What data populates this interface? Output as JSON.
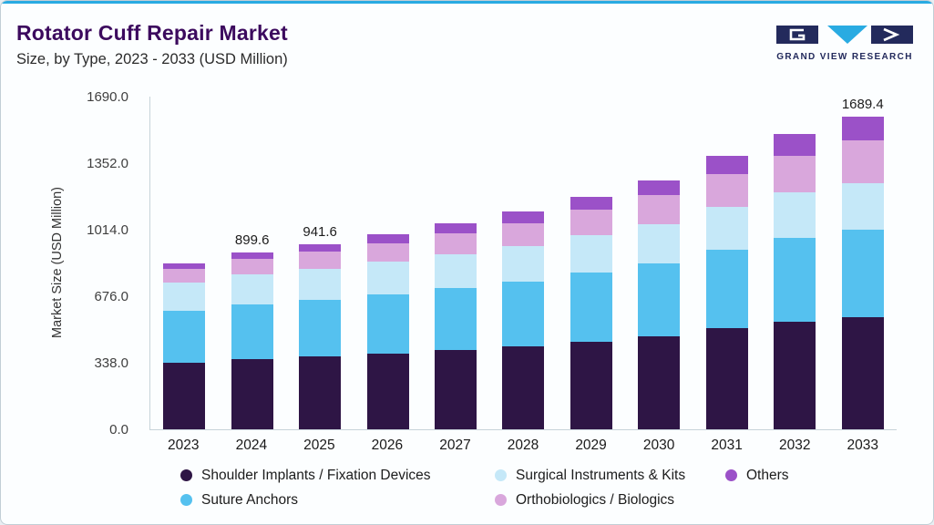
{
  "header": {
    "title": "Rotator Cuff Repair Market",
    "subtitle": "Size, by Type, 2023 - 2033 (USD Million)",
    "brand": "GRAND VIEW RESEARCH"
  },
  "colors": {
    "accent_cyan": "#29ABE2",
    "title_purple": "#3C0A5E",
    "brand_navy": "#232A5C"
  },
  "chart_data": {
    "type": "bar",
    "stacked": true,
    "title": "Rotator Cuff Repair Market Size, by Type, 2023 - 2033 (USD Million)",
    "xlabel": "",
    "ylabel": "Market Size (USD Million)",
    "ylim": [
      0,
      1690
    ],
    "yticks": [
      "0.0",
      "338.0",
      "676.0",
      "1014.0",
      "1352.0",
      "1690.0"
    ],
    "grid": false,
    "legend_position": "bottom",
    "categories": [
      "2023",
      "2024",
      "2025",
      "2026",
      "2027",
      "2028",
      "2029",
      "2030",
      "2031",
      "2032",
      "2033"
    ],
    "series": [
      {
        "name": "Shoulder Implants / Fixation Devices",
        "slug": "shoulder-implants-fixation-devices",
        "color": "#2E1545",
        "values": [
          338,
          356,
          369,
          385,
          403,
          422,
          446,
          472,
          512,
          545,
          605
        ]
      },
      {
        "name": "Suture Anchors",
        "slug": "suture-anchors",
        "color": "#55C1EF",
        "values": [
          262,
          277,
          288,
          300,
          315,
          330,
          349,
          370,
          402,
          428,
          472
        ]
      },
      {
        "name": "Surgical Instruments & Kits",
        "slug": "surgical-instruments-kits",
        "color": "#C5E8F8",
        "values": [
          144,
          152,
          158,
          165,
          172,
          180,
          190,
          201,
          216,
          230,
          255
        ]
      },
      {
        "name": "Orthobiologics / Biologics",
        "slug": "orthobiologics-biologics",
        "color": "#D9A7DC",
        "values": [
          72,
          80,
          88,
          96,
          105,
          116,
          130,
          146,
          168,
          187,
          230
        ]
      },
      {
        "name": "Others",
        "slug": "others",
        "color": "#9B51C8",
        "values": [
          29,
          34.6,
          38.6,
          44,
          50,
          57,
          65,
          76,
          92,
          110,
          127.4
        ]
      }
    ],
    "totals": [
      845,
      899.6,
      941.6,
      990,
      1045,
      1105,
      1180,
      1265,
      1390,
      1500,
      1689.4
    ],
    "total_labels": [
      "",
      "899.6",
      "941.6",
      "",
      "",
      "",
      "",
      "",
      "",
      "",
      "1689.4"
    ]
  }
}
